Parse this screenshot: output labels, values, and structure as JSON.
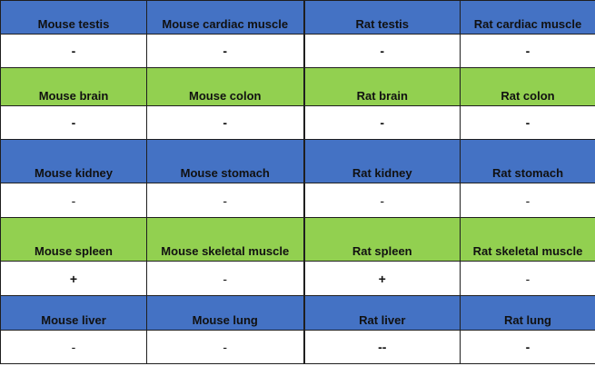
{
  "colors": {
    "blue_header": "#4472c4",
    "green_header": "#92d050",
    "value_row": "#ffffff"
  },
  "blocks": [
    {
      "header_color": "blue",
      "tissues": [
        "Mouse testis",
        "Mouse cardiac muscle",
        "Rat testis",
        "Rat cardiac muscle"
      ],
      "results": [
        "-",
        "-",
        "-",
        "-"
      ]
    },
    {
      "header_color": "green",
      "tissues": [
        "Mouse brain",
        "Mouse colon",
        "Rat brain",
        "Rat colon"
      ],
      "results": [
        "-",
        "-",
        "-",
        "-"
      ]
    },
    {
      "header_color": "blue",
      "tissues": [
        "Mouse kidney",
        "Mouse stomach",
        "Rat kidney",
        "Rat stomach"
      ],
      "results": [
        "-",
        "-",
        "-",
        "-"
      ]
    },
    {
      "header_color": "green",
      "tissues": [
        "Mouse spleen",
        "Mouse skeletal muscle",
        "Rat spleen",
        "Rat skeletal muscle"
      ],
      "results": [
        "+",
        "-",
        "+",
        "-"
      ]
    },
    {
      "header_color": "blue",
      "tissues": [
        "Mouse liver",
        "Mouse lung",
        "Rat liver",
        "Rat lung"
      ],
      "results": [
        "-",
        "-",
        "--",
        "-"
      ]
    }
  ]
}
